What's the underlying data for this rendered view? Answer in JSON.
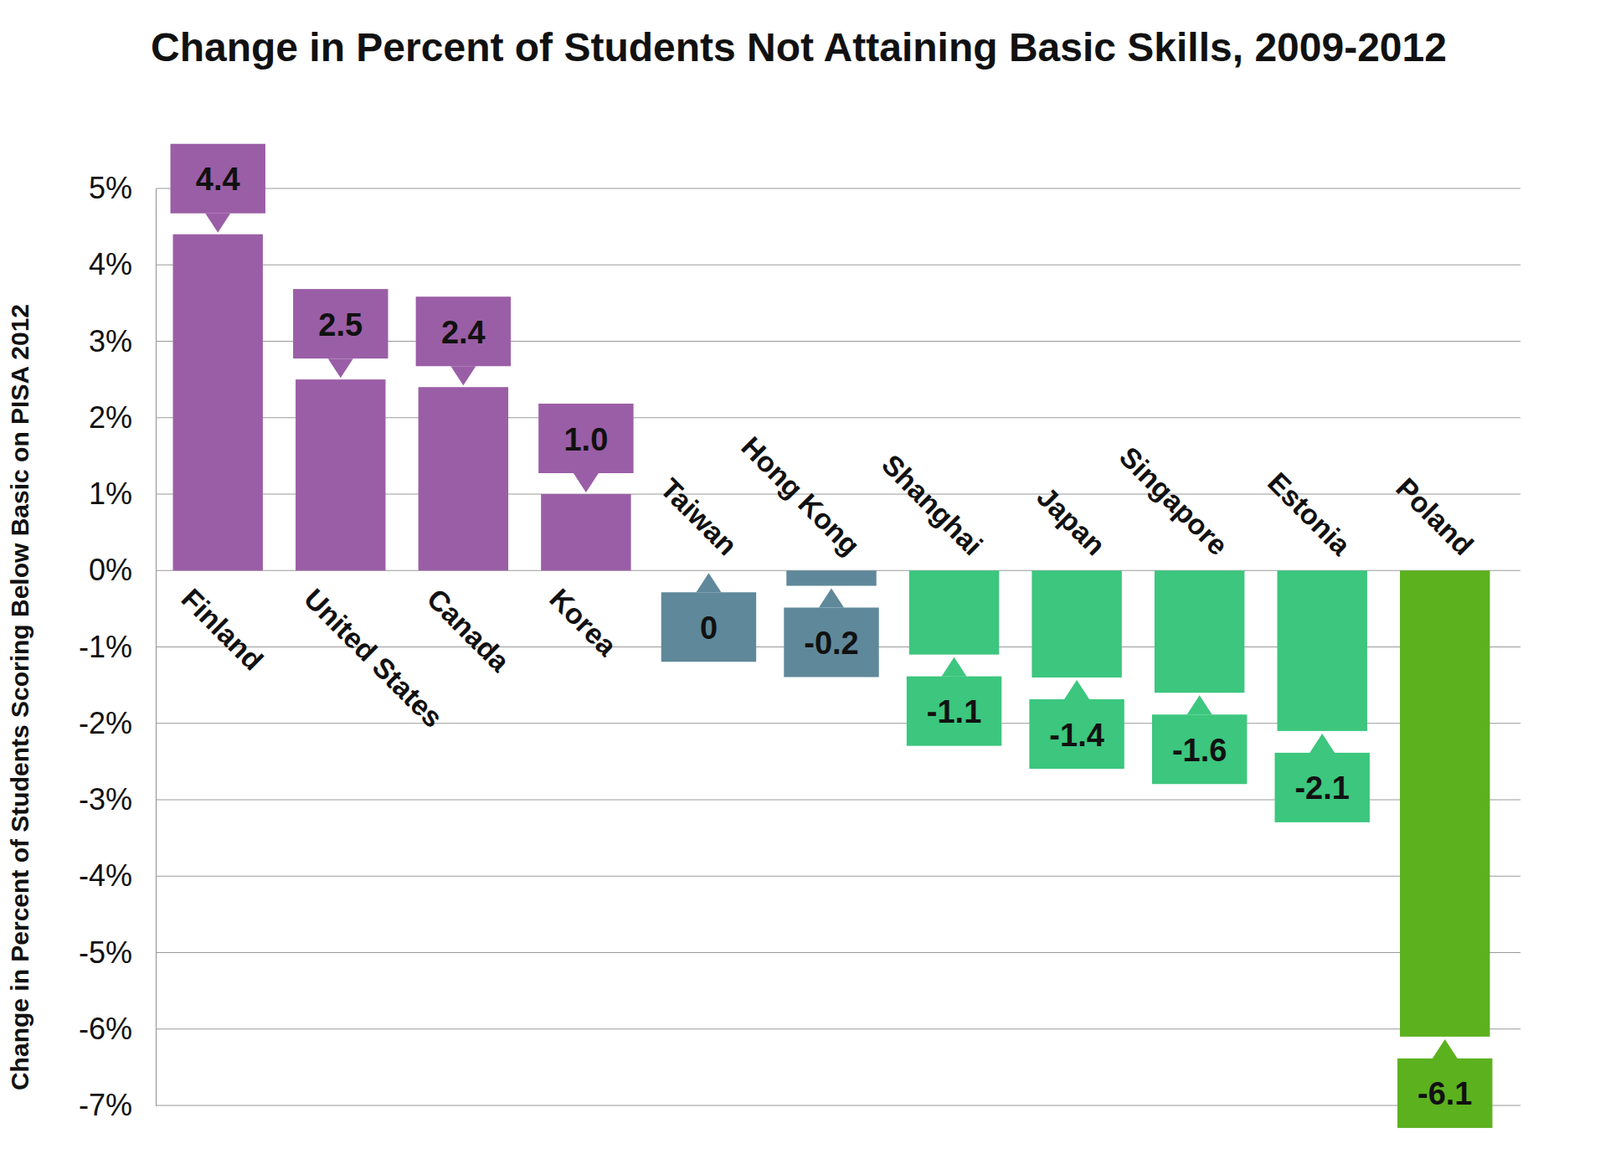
{
  "chart_data": {
    "type": "bar",
    "title": "Change in Percent of Students Not Attaining Basic Skills, 2009-2012",
    "y_label": "Change in Percent of Students Scoring Below Basic on PISA 2012",
    "categories": [
      "Finland",
      "United States",
      "Canada",
      "Korea",
      "Taiwan",
      "Hong Kong",
      "Shanghai",
      "Japan",
      "Singapore",
      "Estonia",
      "Poland"
    ],
    "values": [
      4.4,
      2.5,
      2.4,
      1.0,
      0,
      -0.2,
      -1.1,
      -1.4,
      -1.6,
      -2.1,
      -6.1
    ],
    "value_labels": [
      "4.4",
      "2.5",
      "2.4",
      "1.0",
      "0",
      "-0.2",
      "-1.1",
      "-1.4",
      "-1.6",
      "-2.1",
      "-6.1"
    ],
    "colors": [
      "#9a5ea6",
      "#9a5ea6",
      "#9a5ea6",
      "#9a5ea6",
      "#5f899a",
      "#5f899a",
      "#3cc67e",
      "#3cc67e",
      "#3cc67e",
      "#3cc67e",
      "#5cb11f"
    ],
    "ylim": [
      -7,
      5
    ],
    "yticks": [
      {
        "value": -7,
        "label": "-7%"
      },
      {
        "value": -6,
        "label": "-6%"
      },
      {
        "value": -5,
        "label": "-5%"
      },
      {
        "value": -4,
        "label": "-4%"
      },
      {
        "value": -3,
        "label": "-3%"
      },
      {
        "value": -2,
        "label": "-2%"
      },
      {
        "value": -1,
        "label": "-1%"
      },
      {
        "value": 0,
        "label": "0%"
      },
      {
        "value": 1,
        "label": "1%"
      },
      {
        "value": 2,
        "label": "2%"
      },
      {
        "value": 3,
        "label": "3%"
      },
      {
        "value": 4,
        "label": "4%"
      },
      {
        "value": 5,
        "label": "5%"
      }
    ],
    "grid": true,
    "data_labels": true
  }
}
